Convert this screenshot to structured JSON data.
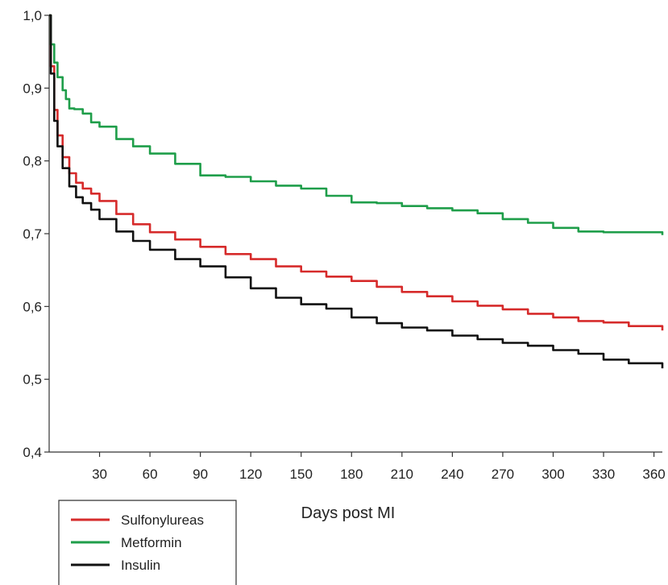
{
  "chart_data": {
    "type": "line",
    "title": "",
    "xlabel": "Days post MI",
    "ylabel": "",
    "xlim": [
      0,
      365
    ],
    "ylim": [
      0.4,
      1.0
    ],
    "x_ticks": [
      30,
      60,
      90,
      120,
      150,
      180,
      210,
      240,
      270,
      300,
      330,
      360
    ],
    "x_tick_labels": [
      "30",
      "60",
      "90",
      "120",
      "150",
      "180",
      "210",
      "240",
      "270",
      "300",
      "330",
      "360"
    ],
    "y_ticks": [
      0.4,
      0.5,
      0.6,
      0.7,
      0.8,
      0.9,
      1.0
    ],
    "y_tick_labels": [
      "0,4",
      "0,5",
      "0,6",
      "0,7",
      "0,8",
      "0,9",
      "1,0"
    ],
    "grid": false,
    "legend_position": "bottom-left",
    "series": [
      {
        "name": "Sulfonylureas",
        "color": "#d62b2b",
        "x": [
          0,
          1,
          3,
          5,
          8,
          12,
          16,
          20,
          25,
          30,
          40,
          50,
          60,
          75,
          90,
          105,
          120,
          135,
          150,
          165,
          180,
          195,
          210,
          225,
          240,
          255,
          270,
          285,
          300,
          315,
          330,
          345,
          365
        ],
        "y": [
          1.0,
          0.93,
          0.87,
          0.835,
          0.805,
          0.783,
          0.77,
          0.762,
          0.755,
          0.745,
          0.727,
          0.713,
          0.702,
          0.692,
          0.682,
          0.672,
          0.665,
          0.655,
          0.648,
          0.641,
          0.635,
          0.627,
          0.62,
          0.614,
          0.607,
          0.601,
          0.596,
          0.59,
          0.585,
          0.58,
          0.578,
          0.573,
          0.567
        ]
      },
      {
        "name": "Metformin",
        "color": "#1f9e4a",
        "x": [
          0,
          1,
          3,
          5,
          8,
          10,
          12,
          15,
          20,
          25,
          30,
          40,
          50,
          60,
          75,
          90,
          105,
          120,
          135,
          150,
          165,
          180,
          195,
          210,
          225,
          240,
          255,
          270,
          285,
          300,
          315,
          330,
          345,
          365
        ],
        "y": [
          1.0,
          0.96,
          0.935,
          0.915,
          0.897,
          0.885,
          0.872,
          0.871,
          0.865,
          0.853,
          0.847,
          0.83,
          0.82,
          0.81,
          0.796,
          0.78,
          0.778,
          0.772,
          0.766,
          0.762,
          0.752,
          0.743,
          0.742,
          0.738,
          0.735,
          0.732,
          0.728,
          0.72,
          0.715,
          0.708,
          0.703,
          0.702,
          0.702,
          0.698
        ]
      },
      {
        "name": "Insulin",
        "color": "#111111",
        "x": [
          0,
          1,
          3,
          5,
          8,
          12,
          16,
          20,
          25,
          30,
          40,
          50,
          60,
          75,
          90,
          105,
          120,
          135,
          150,
          165,
          180,
          195,
          210,
          225,
          240,
          255,
          270,
          285,
          300,
          315,
          330,
          345,
          365
        ],
        "y": [
          1.0,
          0.92,
          0.855,
          0.82,
          0.79,
          0.765,
          0.75,
          0.742,
          0.733,
          0.72,
          0.703,
          0.69,
          0.678,
          0.665,
          0.655,
          0.64,
          0.625,
          0.612,
          0.603,
          0.597,
          0.585,
          0.577,
          0.571,
          0.567,
          0.56,
          0.555,
          0.55,
          0.546,
          0.54,
          0.535,
          0.527,
          0.522,
          0.515
        ]
      }
    ]
  }
}
